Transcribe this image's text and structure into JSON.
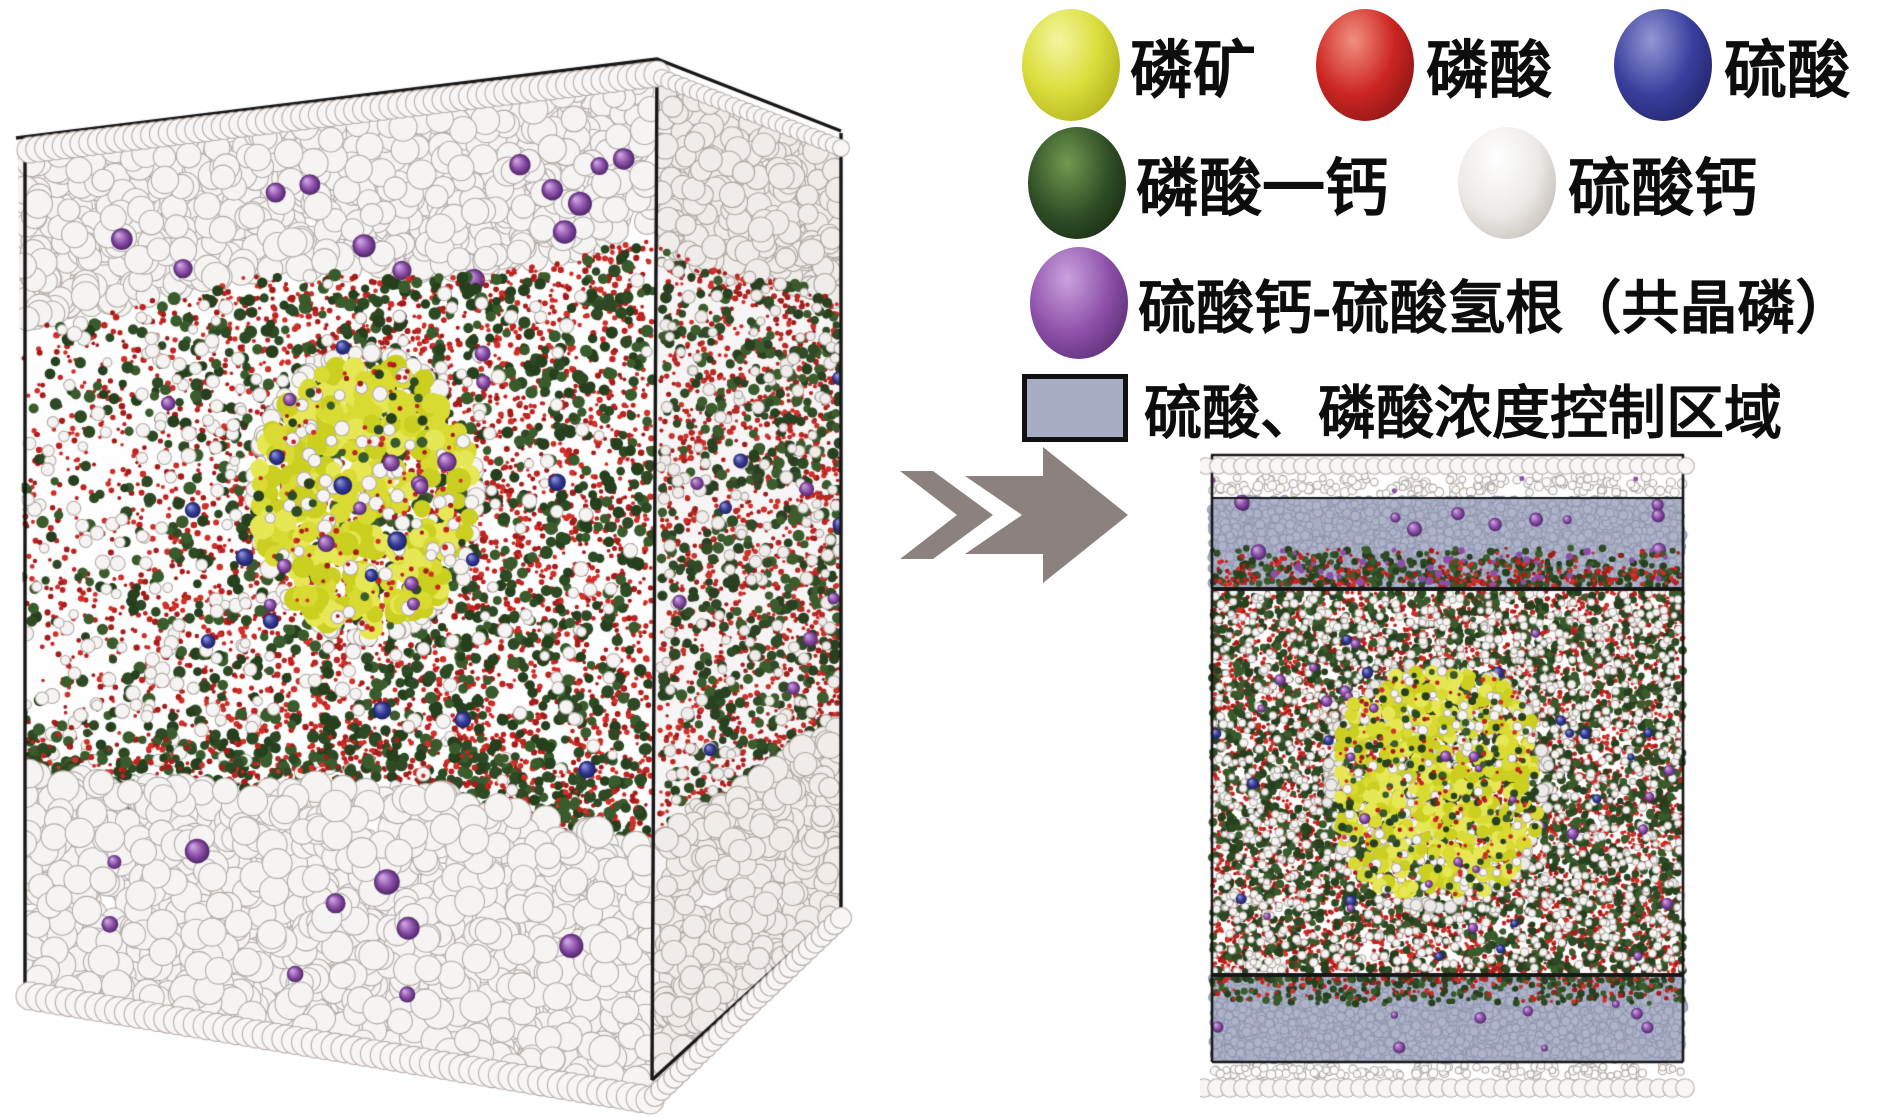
{
  "legend": {
    "items": [
      {
        "id": "phosphate-ore",
        "label": "磷矿",
        "color": "#dbde3c",
        "type": "sphere"
      },
      {
        "id": "phosphoric-acid",
        "label": "磷酸",
        "color": "#cc2522",
        "type": "sphere"
      },
      {
        "id": "sulfuric-acid",
        "label": "硫酸",
        "color": "#3a3f9e",
        "type": "sphere"
      },
      {
        "id": "monocalcium-phosphate",
        "label": "磷酸一钙",
        "color": "#2e4d26",
        "type": "sphere"
      },
      {
        "id": "calcium-sulfate",
        "label": "硫酸钙",
        "color": "#f1efec",
        "type": "sphere"
      },
      {
        "id": "gypsum-cocrystal",
        "label": "硫酸钙-硫酸氢根（共晶磷）",
        "color": "#8c4fa8",
        "type": "sphere"
      },
      {
        "id": "control-region",
        "label": "硫酸、磷酸浓度控制区域",
        "color": "#a7adc4",
        "type": "region"
      }
    ]
  },
  "arrow": {
    "direction": "right",
    "color": "#8b8280"
  },
  "render": {
    "background": "#ffffff",
    "edge_color": "#161616",
    "ore_yellow": [
      "#d9db32",
      "#e6e754",
      "#cbcf20"
    ],
    "acid_red": [
      "#bf2420",
      "#a51c19",
      "#d03028"
    ],
    "mcp_green": [
      "#2e4a24",
      "#26401e",
      "#3a5c2c"
    ],
    "sulfuric_blue": "#343a97",
    "cocrystal_purple": "#8c4fa8",
    "gypsum_fill": "#f6f4f2",
    "gypsum_stroke": "#b3aca8",
    "band_fill": "#a7adc4",
    "band_dot_stroke": "#9097b0",
    "band_dot_fill": "#aeb3c9"
  }
}
